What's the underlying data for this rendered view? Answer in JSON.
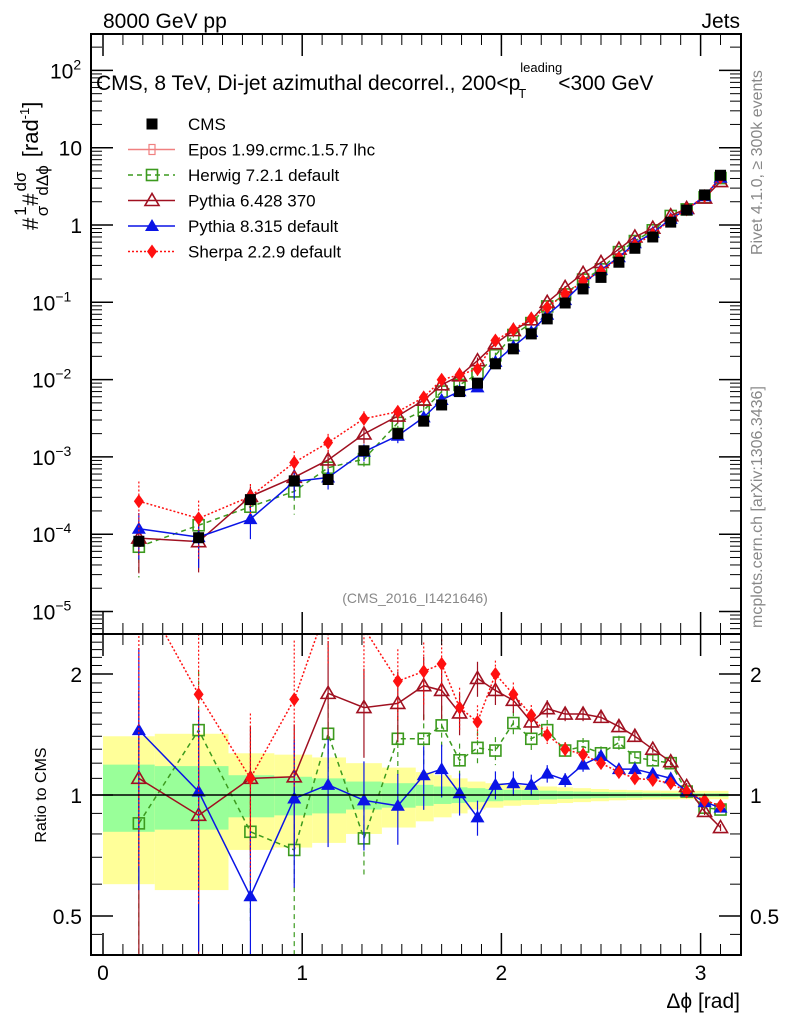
{
  "header": {
    "left": "8000 GeV pp",
    "right": "Jets"
  },
  "side_labels": {
    "rivet": "Rivet 4.1.0, ≥ 300k events",
    "mcplots": "mcplots.cern.ch [arXiv:1306.3436]"
  },
  "watermark": "(CMS_2016_I1421646)",
  "chart_data": [
    {
      "type": "line",
      "panel": "main",
      "title": "CMS, 8 TeV, Di-jet azimuthal decorrel., 200<p_T^leading<300 GeV",
      "title_parts": {
        "pre": "CMS, 8 TeV, Di-jet azimuthal decorrel., 200<p",
        "sup": "leading",
        "sub": "T",
        "post": "<300 GeV"
      },
      "xlabel": "Δϕ [rad]",
      "ylabel": "#1/σ# dσ/dΔϕ [rad⁻¹]",
      "ylabel_parts": {
        "prefix": "#",
        "num1": "1",
        "den1": "σ",
        "mid": "#",
        "num2": "dσ",
        "den2": "dΔϕ",
        "unit": "[rad",
        "unit_sup": "-1",
        "unit_end": "]"
      },
      "yscale": "log",
      "xlim": [
        -0.06,
        3.2
      ],
      "ylim": [
        5e-06,
        300
      ],
      "yticks": [
        {
          "v": 1e-05,
          "label": "10",
          "sup": "−5"
        },
        {
          "v": 0.0001,
          "label": "10",
          "sup": "−4"
        },
        {
          "v": 0.001,
          "label": "10",
          "sup": "−3"
        },
        {
          "v": 0.01,
          "label": "10",
          "sup": "−2"
        },
        {
          "v": 0.1,
          "label": "10",
          "sup": "−1"
        },
        {
          "v": 1,
          "label": "1",
          "sup": ""
        },
        {
          "v": 10,
          "label": "10",
          "sup": ""
        },
        {
          "v": 100,
          "label": "10",
          "sup": "2"
        }
      ],
      "x": [
        0.18,
        0.48,
        0.74,
        0.96,
        1.13,
        1.31,
        1.48,
        1.61,
        1.7,
        1.79,
        1.88,
        1.97,
        2.06,
        2.15,
        2.23,
        2.32,
        2.41,
        2.5,
        2.59,
        2.67,
        2.76,
        2.85,
        2.93,
        3.02,
        3.1
      ],
      "cms": [
        8.1e-05,
        9e-05,
        0.00028,
        0.00049,
        0.00051,
        0.0012,
        0.002,
        0.0029,
        0.0047,
        0.007,
        0.009,
        0.016,
        0.025,
        0.039,
        0.061,
        0.098,
        0.149,
        0.21,
        0.33,
        0.5,
        0.7,
        1.09,
        1.56,
        2.45,
        4.4
      ],
      "legend_position": "top-left",
      "legend": [
        {
          "name": "CMS",
          "color": "#000000",
          "marker": "square-filled",
          "line": "none"
        },
        {
          "name": "Epos 1.99.crmc.1.5.7 lhc",
          "color": "#f08080",
          "marker": "cross-open",
          "line": "solid"
        },
        {
          "name": "Herwig 7.2.1 default",
          "color": "#3c9a1e",
          "marker": "square-open",
          "line": "dashed"
        },
        {
          "name": "Pythia 6.428 370",
          "color": "#a01020",
          "marker": "triangle-open",
          "line": "solid"
        },
        {
          "name": "Pythia 8.315 default",
          "color": "#0a14e6",
          "marker": "triangle-filled",
          "line": "solid"
        },
        {
          "name": "Sherpa 2.2.9 default",
          "color": "#ff1010",
          "marker": "diamond-filled",
          "line": "dotted"
        }
      ]
    },
    {
      "type": "line",
      "panel": "ratio",
      "ylabel": "Ratio to CMS",
      "xlabel": "Δϕ [rad]",
      "yscale": "log",
      "ylim": [
        0.41,
        2.45
      ],
      "yticks": [
        {
          "v": 0.5,
          "label": "0.5"
        },
        {
          "v": 1,
          "label": "1"
        },
        {
          "v": 2,
          "label": "2"
        }
      ],
      "xticks": [
        {
          "v": 0,
          "label": "0"
        },
        {
          "v": 1,
          "label": "1"
        },
        {
          "v": 2,
          "label": "2"
        },
        {
          "v": 3,
          "label": "3"
        }
      ],
      "bins": [
        0.0,
        0.26,
        0.63,
        0.86,
        1.05,
        1.22,
        1.4,
        1.57,
        1.66,
        1.75,
        1.83,
        1.92,
        2.01,
        2.1,
        2.19,
        2.28,
        2.36,
        2.45,
        2.54,
        2.63,
        2.71,
        2.8,
        2.89,
        2.98,
        3.07,
        3.14
      ],
      "band_stat": [
        0.19,
        0.18,
        0.12,
        0.11,
        0.1,
        0.08,
        0.07,
        0.06,
        0.05,
        0.045,
        0.04,
        0.035,
        0.03,
        0.028,
        0.025,
        0.022,
        0.02,
        0.018,
        0.016,
        0.015,
        0.013,
        0.012,
        0.011,
        0.01,
        0.01
      ],
      "band_total": [
        0.4,
        0.42,
        0.27,
        0.26,
        0.24,
        0.2,
        0.17,
        0.14,
        0.12,
        0.1,
        0.08,
        0.07,
        0.06,
        0.055,
        0.05,
        0.045,
        0.04,
        0.035,
        0.03,
        0.028,
        0.026,
        0.025,
        0.024,
        0.024,
        0.024
      ],
      "series": [
        {
          "name": "Herwig 7.2.1 default",
          "values": [
            0.85,
            1.45,
            0.81,
            0.73,
            1.42,
            0.78,
            1.38,
            1.38,
            1.49,
            1.22,
            1.31,
            1.29,
            1.51,
            1.38,
            1.45,
            1.29,
            1.32,
            1.27,
            1.35,
            1.24,
            1.22,
            1.2,
            1.02,
            0.93,
            0.92
          ]
        },
        {
          "name": "Pythia 6.428 370",
          "values": [
            1.1,
            0.89,
            1.1,
            1.11,
            1.79,
            1.65,
            1.69,
            1.87,
            1.82,
            1.6,
            1.95,
            1.82,
            1.72,
            1.52,
            1.64,
            1.59,
            1.59,
            1.56,
            1.48,
            1.4,
            1.3,
            1.21,
            1.05,
            0.91,
            0.83
          ]
        },
        {
          "name": "Pythia 8.315 default",
          "values": [
            1.45,
            1.02,
            0.56,
            0.98,
            1.06,
            0.97,
            0.94,
            1.12,
            1.16,
            1.01,
            0.88,
            1.06,
            1.07,
            1.06,
            1.13,
            1.09,
            1.19,
            1.25,
            1.16,
            1.16,
            1.13,
            1.1,
            1.02,
            0.96,
            0.93
          ]
        },
        {
          "name": "Sherpa 2.2.9 default",
          "values": [
            3.3,
            1.78,
            1.1,
            1.73,
            3.0,
            2.6,
            1.92,
            2.03,
            2.12,
            1.65,
            1.52,
            2.0,
            1.78,
            1.58,
            1.41,
            1.3,
            1.26,
            1.2,
            1.14,
            1.1,
            1.09,
            1.07,
            1.02,
            0.97,
            0.94
          ]
        }
      ],
      "errors": {
        "Herwig 7.2.1 default": [
          0.6,
          0.4,
          0.4,
          0.5,
          0.25,
          0.2,
          0.2,
          0.15,
          0.12,
          0.1,
          0.1,
          0.08,
          0.07,
          0.07,
          0.06,
          0.05,
          0.05,
          0.04,
          0.04,
          0.03,
          0.03,
          0.03,
          0.02,
          0.02,
          0.02
        ],
        "Pythia 6.428 370": [
          0.65,
          0.6,
          0.35,
          0.35,
          0.35,
          0.25,
          0.2,
          0.18,
          0.15,
          0.12,
          0.1,
          0.08,
          0.07,
          0.06,
          0.05,
          0.04,
          0.04,
          0.03,
          0.03,
          0.03,
          0.02,
          0.02,
          0.02,
          0.02,
          0.02
        ],
        "Pythia 8.315 default": [
          0.6,
          0.6,
          0.45,
          0.4,
          0.3,
          0.25,
          0.2,
          0.18,
          0.15,
          0.12,
          0.1,
          0.08,
          0.07,
          0.06,
          0.05,
          0.04,
          0.04,
          0.03,
          0.03,
          0.03,
          0.02,
          0.02,
          0.02,
          0.02,
          0.02
        ],
        "Sherpa 2.2.9 default": [
          0.8,
          0.7,
          0.45,
          0.4,
          0.3,
          0.25,
          0.2,
          0.18,
          0.15,
          0.12,
          0.1,
          0.08,
          0.07,
          0.06,
          0.05,
          0.04,
          0.04,
          0.03,
          0.03,
          0.03,
          0.02,
          0.02,
          0.02,
          0.02,
          0.02
        ]
      }
    }
  ]
}
